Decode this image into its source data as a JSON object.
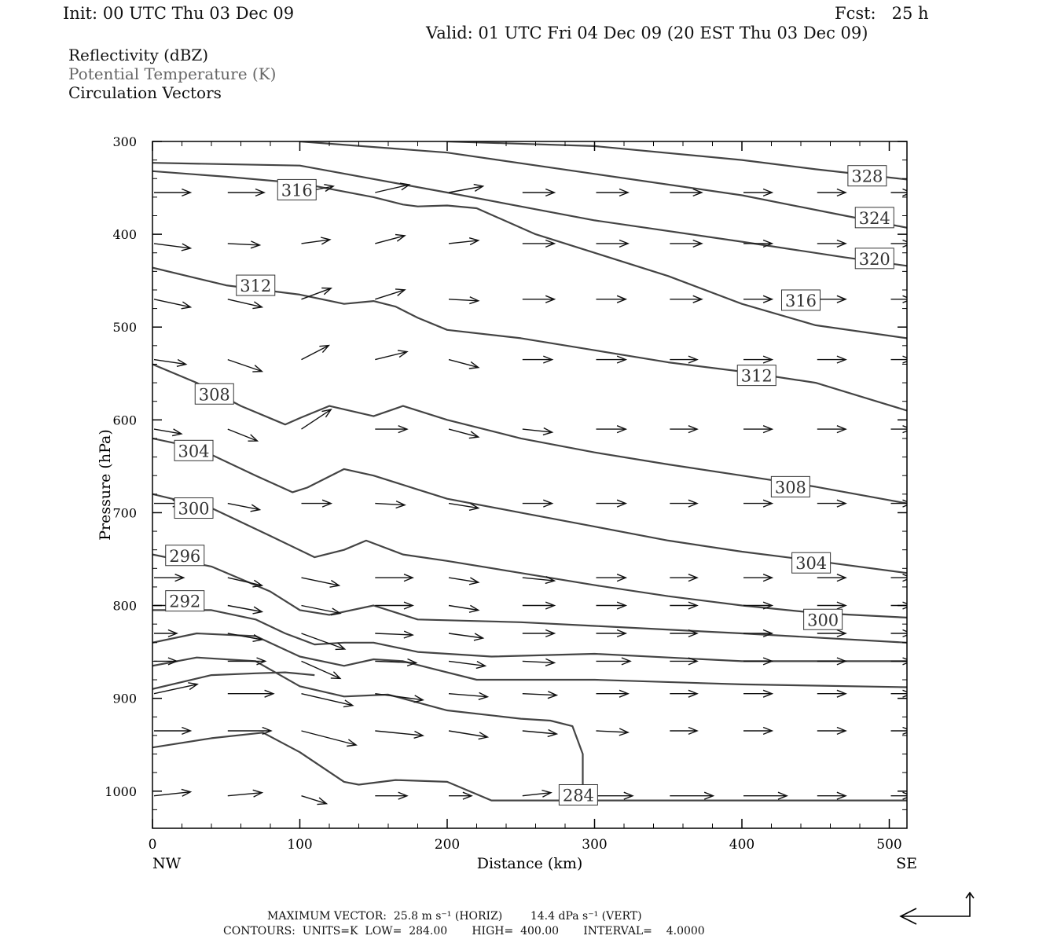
{
  "header": {
    "init": "Init: 00 UTC Thu 03 Dec 09",
    "fcst": "Fcst:   25 h",
    "valid": "Valid: 01 UTC Fri 04 Dec 09 (20 EST Thu 03 Dec 09)"
  },
  "legend": {
    "reflectivity": "Reflectivity (dBZ)",
    "theta": "Potential Temperature (K)",
    "vectors": "Circulation Vectors"
  },
  "footer": {
    "max_vector": "MAXIMUM VECTOR:  25.8 m s⁻¹ (HORIZ)        14.4 dPa s⁻¹ (VERT)",
    "contours": "CONTOURS:  UNITS=K  LOW=  284.00       HIGH=  400.00       INTERVAL=    4.0000"
  },
  "colors": {
    "contour": "#444444",
    "vector": "#111111",
    "axis": "#000000"
  },
  "chart_data": {
    "type": "line",
    "title": "",
    "xlabel": "Distance (km)",
    "ylabel": "Pressure (hPa)",
    "xlim": [
      0,
      512
    ],
    "ylim": [
      300,
      1040
    ],
    "x_ticks": [
      0,
      100,
      200,
      300,
      400,
      500
    ],
    "y_ticks": [
      300,
      400,
      500,
      600,
      700,
      800,
      900,
      1000
    ],
    "x_end_labels": [
      "NW",
      "SE"
    ],
    "grid": false,
    "series": [
      {
        "label": "328",
        "label_at": [
          485,
          337
        ],
        "x": [
          200,
          300,
          400,
          450,
          512
        ],
        "y": [
          300,
          305,
          320,
          330,
          341
        ]
      },
      {
        "label": "324",
        "label_at": [
          490,
          382
        ],
        "x": [
          100,
          200,
          300,
          400,
          470,
          512
        ],
        "y": [
          300,
          312,
          335,
          358,
          380,
          393
        ]
      },
      {
        "label": "320",
        "label_at": [
          490,
          426
        ],
        "x": [
          0,
          100,
          200,
          300,
          400,
          470,
          512
        ],
        "y": [
          323,
          326,
          355,
          385,
          408,
          425,
          434
        ]
      },
      {
        "label": "316",
        "label_at": [
          98,
          352
        ],
        "x": [
          0,
          50,
          100,
          150,
          170,
          180,
          200,
          220,
          260,
          300,
          350,
          400,
          450,
          512
        ],
        "y": [
          332,
          338,
          345,
          360,
          368,
          370,
          369,
          372,
          400,
          420,
          445,
          475,
          498,
          512
        ]
      },
      {
        "label": "316",
        "label_at": [
          440,
          471
        ],
        "x": [
          0,
          50,
          100,
          150,
          170,
          180,
          200,
          220,
          260,
          300,
          350,
          400,
          450,
          512
        ],
        "y": [
          332,
          338,
          345,
          360,
          368,
          370,
          369,
          372,
          400,
          420,
          445,
          475,
          498,
          512
        ]
      },
      {
        "label": "312",
        "label_at": [
          70,
          455
        ],
        "x": [
          0,
          50,
          100,
          130,
          150,
          165,
          180,
          200,
          250,
          300,
          350,
          400,
          450,
          512
        ],
        "y": [
          436,
          455,
          465,
          475,
          472,
          478,
          490,
          503,
          512,
          525,
          538,
          548,
          560,
          590
        ]
      },
      {
        "label": "312",
        "label_at": [
          410,
          552
        ],
        "x": [
          0,
          50,
          100,
          130,
          150,
          165,
          180,
          200,
          250,
          300,
          350,
          400,
          450,
          512
        ],
        "y": [
          436,
          455,
          465,
          475,
          472,
          478,
          490,
          503,
          512,
          525,
          538,
          548,
          560,
          590
        ]
      },
      {
        "label": "308",
        "label_at": [
          42,
          572
        ],
        "x": [
          0,
          30,
          60,
          90,
          100,
          120,
          150,
          170,
          200,
          250,
          300,
          350,
          400,
          450,
          512
        ],
        "y": [
          540,
          560,
          585,
          605,
          598,
          585,
          596,
          585,
          600,
          620,
          635,
          648,
          660,
          672,
          690
        ]
      },
      {
        "label": "308",
        "label_at": [
          433,
          672
        ],
        "x": [
          0,
          30,
          60,
          90,
          100,
          120,
          150,
          170,
          200,
          250,
          300,
          350,
          400,
          450,
          512
        ],
        "y": [
          540,
          560,
          585,
          605,
          598,
          585,
          596,
          585,
          600,
          620,
          635,
          648,
          660,
          672,
          690
        ]
      },
      {
        "label": "304",
        "label_at": [
          28,
          633
        ],
        "x": [
          0,
          30,
          70,
          95,
          105,
          130,
          150,
          180,
          200,
          250,
          300,
          350,
          400,
          450,
          512
        ],
        "y": [
          620,
          630,
          660,
          678,
          673,
          653,
          660,
          675,
          685,
          700,
          715,
          730,
          742,
          752,
          765
        ]
      },
      {
        "label": "304",
        "label_at": [
          447,
          754
        ],
        "x": [
          0,
          30,
          70,
          95,
          105,
          130,
          150,
          180,
          200,
          250,
          300,
          350,
          400,
          450,
          512
        ],
        "y": [
          620,
          630,
          660,
          678,
          673,
          653,
          660,
          675,
          685,
          700,
          715,
          730,
          742,
          752,
          765
        ]
      },
      {
        "label": "300",
        "label_at": [
          28,
          695
        ],
        "x": [
          0,
          40,
          80,
          110,
          130,
          145,
          170,
          200,
          250,
          300,
          350,
          400,
          450,
          512
        ],
        "y": [
          680,
          695,
          725,
          748,
          740,
          730,
          745,
          752,
          765,
          778,
          790,
          800,
          808,
          813
        ]
      },
      {
        "label": "300",
        "label_at": [
          455,
          815
        ],
        "x": [
          0,
          40,
          80,
          110,
          130,
          145,
          170,
          200,
          250,
          300,
          350,
          400,
          450,
          512
        ],
        "y": [
          680,
          695,
          725,
          748,
          740,
          730,
          745,
          752,
          765,
          778,
          790,
          800,
          808,
          813
        ]
      },
      {
        "label": "296",
        "label_at": [
          22,
          746
        ],
        "x": [
          0,
          40,
          80,
          100,
          120,
          150,
          170,
          180,
          250,
          300,
          400,
          512
        ],
        "y": [
          745,
          758,
          785,
          805,
          810,
          800,
          810,
          815,
          818,
          822,
          830,
          840
        ]
      },
      {
        "label": "292",
        "label_at": [
          22,
          795
        ],
        "x": [
          0,
          40,
          70,
          90,
          110,
          130,
          150,
          180,
          230,
          300,
          400,
          512
        ],
        "y": [
          805,
          805,
          815,
          830,
          842,
          840,
          840,
          850,
          855,
          852,
          860,
          860
        ]
      },
      {
        "label": "",
        "label_at": null,
        "x": [
          0,
          30,
          70,
          100,
          130,
          150,
          170,
          190,
          220,
          300,
          400,
          512
        ],
        "y": [
          840,
          830,
          833,
          855,
          865,
          858,
          860,
          868,
          880,
          880,
          885,
          888
        ]
      },
      {
        "label": "",
        "label_at": null,
        "x": [
          0,
          30,
          70,
          100,
          130,
          160,
          200,
          250,
          270,
          285,
          292,
          292
        ],
        "y": [
          865,
          856,
          860,
          887,
          898,
          896,
          913,
          922,
          924,
          930,
          960,
          1000
        ]
      },
      {
        "label": "284",
        "label_at": [
          289,
          1004
        ],
        "x": [
          0,
          40,
          75,
          100,
          130,
          140,
          165,
          200,
          230,
          260,
          300,
          400,
          512
        ],
        "y": [
          953,
          943,
          937,
          958,
          990,
          993,
          988,
          990,
          1010,
          1010,
          1010,
          1010,
          1010
        ]
      },
      {
        "label": "",
        "label_at": null,
        "x": [
          0,
          40,
          70,
          90,
          110
        ],
        "y": [
          890,
          875,
          873,
          872,
          875
        ]
      }
    ],
    "vectors": {
      "x": [
        0,
        50,
        100,
        150,
        200,
        250,
        300,
        350,
        400,
        450,
        500
      ],
      "p": [
        355,
        410,
        470,
        535,
        610,
        690,
        770,
        800,
        830,
        860,
        895,
        935,
        1005
      ],
      "note": "arrows from circulation field (dx km, dp hPa) per grid point",
      "u": [
        [
          32,
          32,
          28,
          30,
          30,
          28,
          28,
          28,
          25,
          25,
          18
        ],
        [
          32,
          28,
          25,
          26,
          26,
          28,
          28,
          28,
          25,
          25,
          18
        ],
        [
          32,
          30,
          26,
          26,
          26,
          28,
          26,
          28,
          25,
          25,
          18
        ],
        [
          28,
          30,
          24,
          28,
          26,
          26,
          26,
          24,
          25,
          25,
          18
        ],
        [
          24,
          26,
          26,
          28,
          26,
          26,
          26,
          24,
          25,
          25,
          18
        ],
        [
          24,
          28,
          26,
          26,
          26,
          26,
          26,
          24,
          25,
          25,
          18
        ],
        [
          26,
          30,
          33,
          33,
          26,
          28,
          26,
          24,
          25,
          25,
          18
        ],
        [
          26,
          30,
          34,
          33,
          26,
          28,
          26,
          24,
          25,
          25,
          18
        ],
        [
          20,
          30,
          38,
          33,
          30,
          28,
          26,
          24,
          25,
          25,
          18
        ],
        [
          20,
          33,
          34,
          36,
          32,
          28,
          30,
          24,
          25,
          25,
          18
        ],
        [
          38,
          40,
          45,
          42,
          34,
          30,
          28,
          24,
          25,
          25,
          18
        ],
        [
          32,
          38,
          48,
          42,
          34,
          30,
          28,
          24,
          25,
          25,
          18
        ],
        [
          32,
          30,
          22,
          28,
          20,
          25,
          32,
          38,
          38,
          25,
          18
        ]
      ],
      "v": [
        [
          0,
          0,
          -8,
          -10,
          -8,
          0,
          0,
          0,
          0,
          0,
          0
        ],
        [
          6,
          2,
          -5,
          -10,
          -4,
          0,
          0,
          0,
          0,
          0,
          0
        ],
        [
          10,
          10,
          -14,
          -12,
          2,
          0,
          0,
          0,
          0,
          0,
          0
        ],
        [
          6,
          15,
          -18,
          -10,
          10,
          0,
          0,
          0,
          0,
          0,
          0
        ],
        [
          6,
          15,
          -25,
          0,
          10,
          4,
          0,
          0,
          0,
          0,
          0
        ],
        [
          0,
          8,
          0,
          2,
          6,
          0,
          0,
          0,
          0,
          0,
          0
        ],
        [
          0,
          10,
          10,
          0,
          6,
          4,
          0,
          0,
          0,
          0,
          0
        ],
        [
          0,
          8,
          10,
          0,
          6,
          0,
          0,
          0,
          0,
          0,
          0
        ],
        [
          0,
          8,
          20,
          2,
          6,
          0,
          0,
          0,
          0,
          0,
          0
        ],
        [
          0,
          0,
          22,
          2,
          6,
          2,
          0,
          0,
          0,
          0,
          0
        ],
        [
          -12,
          0,
          15,
          8,
          4,
          2,
          0,
          0,
          0,
          0,
          0
        ],
        [
          0,
          0,
          18,
          6,
          8,
          4,
          2,
          0,
          0,
          0,
          0
        ],
        [
          -5,
          -4,
          10,
          0,
          0,
          -4,
          0,
          0,
          0,
          0,
          0
        ]
      ]
    }
  }
}
